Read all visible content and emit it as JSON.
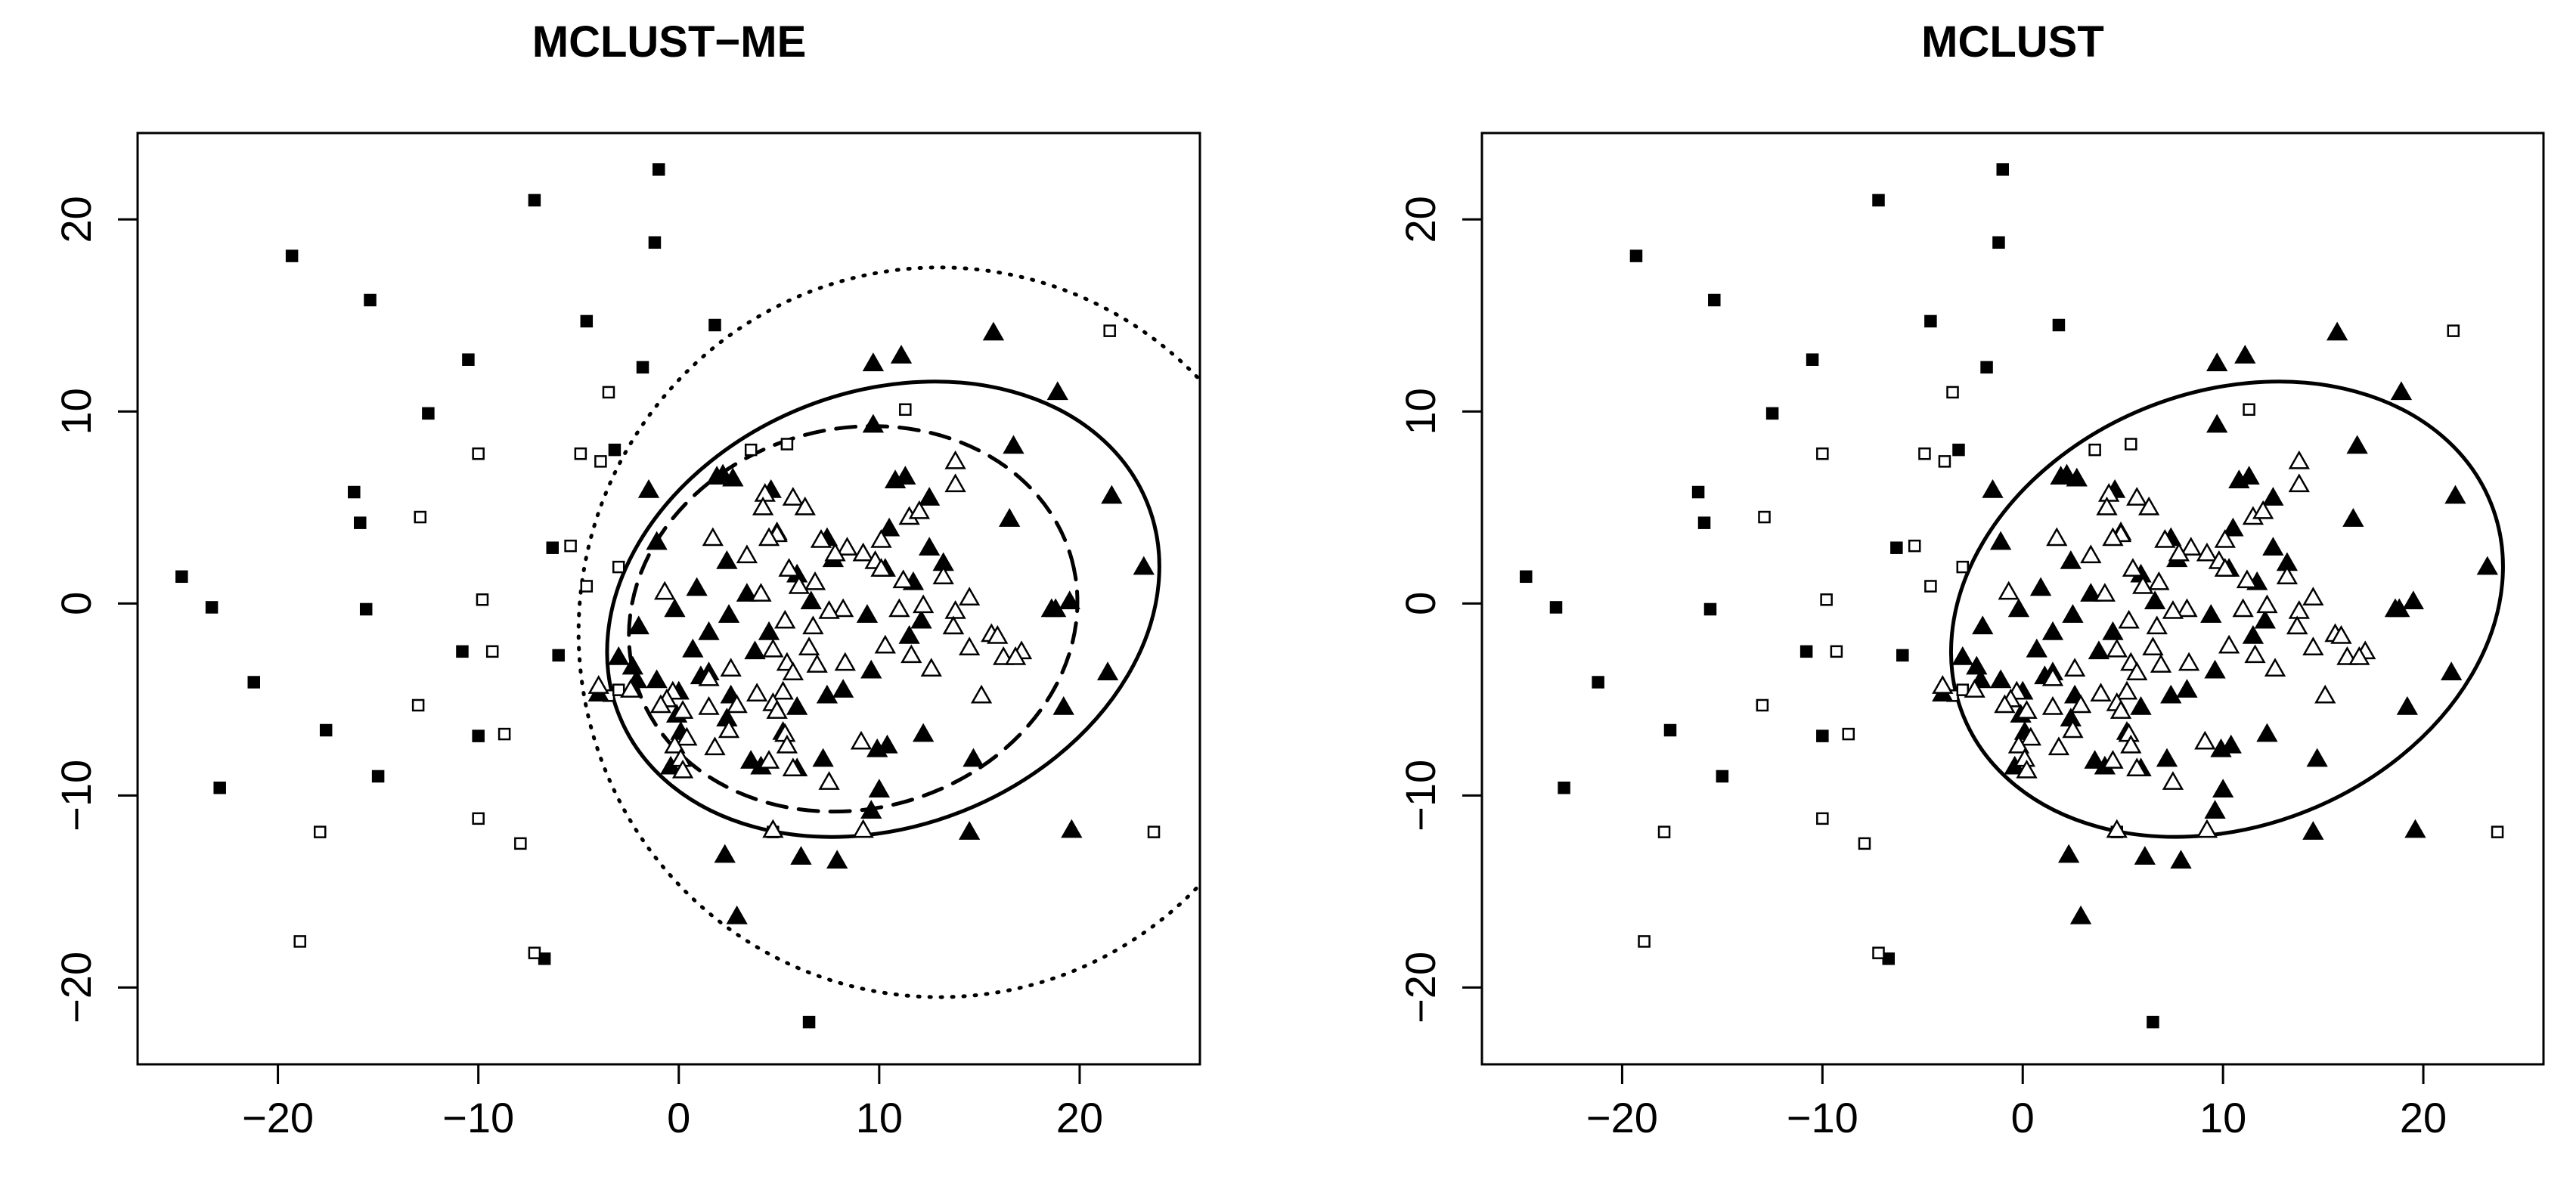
{
  "chart_data": [
    {
      "type": "scatter",
      "title": "MCLUST−ME",
      "xlabel": "",
      "ylabel": "",
      "xlim": [
        -27,
        26
      ],
      "ylim": [
        -24,
        24.5
      ],
      "x_ticks": [
        -20,
        -10,
        0,
        10,
        20
      ],
      "y_ticks": [
        -20,
        -10,
        0,
        10,
        20
      ],
      "x_tick_labels": [
        "−20",
        "−10",
        "0",
        "10",
        "20"
      ],
      "y_tick_labels": [
        "−20",
        "−10",
        "0",
        "10",
        "20"
      ],
      "grid": false,
      "ellipses": [
        {
          "style": "solid",
          "cx": 10.2,
          "cy": -0.3,
          "rx": 14.2,
          "ry": 11.3,
          "angle": 22
        },
        {
          "style": "dashed",
          "cx": 8.7,
          "cy": -0.8,
          "rx": 11.3,
          "ry": 9.9,
          "angle": 15
        },
        {
          "style": "dotted",
          "cx": 13.0,
          "cy": -1.5,
          "rx": 18.0,
          "ry": 19.0,
          "angle": 0
        }
      ]
    },
    {
      "type": "scatter",
      "title": "MCLUST",
      "xlabel": "",
      "ylabel": "",
      "xlim": [
        -27,
        26
      ],
      "ylim": [
        -24,
        24.5
      ],
      "x_ticks": [
        -20,
        -10,
        0,
        10,
        20
      ],
      "y_ticks": [
        -20,
        -10,
        0,
        10,
        20
      ],
      "x_tick_labels": [
        "−20",
        "−10",
        "0",
        "10",
        "20"
      ],
      "y_tick_labels": [
        "−20",
        "−10",
        "0",
        "10",
        "20"
      ],
      "grid": false,
      "ellipses": [
        {
          "style": "solid",
          "cx": 10.2,
          "cy": -0.3,
          "rx": 14.2,
          "ry": 11.3,
          "angle": 22
        }
      ]
    }
  ],
  "points": {
    "filled_squares": [
      [
        -1,
        22.6
      ],
      [
        -7.2,
        21
      ],
      [
        -1.2,
        18.8
      ],
      [
        -19.3,
        18.1
      ],
      [
        -15.4,
        15.8
      ],
      [
        -4.6,
        14.7
      ],
      [
        1.8,
        14.5
      ],
      [
        -10.5,
        12.7
      ],
      [
        -1.8,
        12.3
      ],
      [
        -12.5,
        9.9
      ],
      [
        -3.2,
        8
      ],
      [
        -16.2,
        5.8
      ],
      [
        -15.9,
        4.2
      ],
      [
        -6.3,
        2.9
      ],
      [
        -24.8,
        1.4
      ],
      [
        -23.3,
        -0.2
      ],
      [
        -15.6,
        -0.3
      ],
      [
        -10.8,
        -2.5
      ],
      [
        -6,
        -2.7
      ],
      [
        -21.2,
        -4.1
      ],
      [
        -10,
        -6.9
      ],
      [
        -17.6,
        -6.6
      ],
      [
        -15,
        -9
      ],
      [
        -22.9,
        -9.6
      ],
      [
        -6.7,
        -18.5
      ],
      [
        6.5,
        -21.8
      ]
    ],
    "open_squares": [
      [
        21.5,
        14.2
      ],
      [
        -3.5,
        11
      ],
      [
        11.3,
        10.1
      ],
      [
        3.6,
        8
      ],
      [
        5.4,
        8.3
      ],
      [
        -10,
        7.8
      ],
      [
        -4.9,
        7.8
      ],
      [
        -3.9,
        7.4
      ],
      [
        -12.9,
        4.5
      ],
      [
        -5.4,
        3
      ],
      [
        -3,
        1.9
      ],
      [
        -4.6,
        0.9
      ],
      [
        -9.8,
        0.2
      ],
      [
        -9.3,
        -2.5
      ],
      [
        -13,
        -5.3
      ],
      [
        -8.7,
        -6.8
      ],
      [
        -10,
        -11.2
      ],
      [
        -17.9,
        -11.9
      ],
      [
        4.7,
        -11.9
      ],
      [
        -7.9,
        -12.5
      ],
      [
        23.7,
        -11.9
      ],
      [
        -18.9,
        -17.6
      ],
      [
        -7.2,
        -18.2
      ],
      [
        -3.5,
        -4.8
      ],
      [
        -3,
        -4.5
      ]
    ],
    "filled_triangles": [
      [
        11.1,
        12.9
      ],
      [
        9.7,
        12.5
      ],
      [
        15.7,
        14.1
      ],
      [
        18.9,
        11
      ],
      [
        9.7,
        9.3
      ],
      [
        16.7,
        8.2
      ],
      [
        2.2,
        6.7
      ],
      [
        1.9,
        6.6
      ],
      [
        2.7,
        6.5
      ],
      [
        10.8,
        6.4
      ],
      [
        11.3,
        6.6
      ],
      [
        4.6,
        5.9
      ],
      [
        -1.5,
        5.9
      ],
      [
        12.5,
        5.5
      ],
      [
        21.6,
        5.6
      ],
      [
        7.4,
        3.4
      ],
      [
        10.5,
        3.9
      ],
      [
        -1.1,
        3.2
      ],
      [
        12.5,
        2.9
      ],
      [
        7.7,
        2.3
      ],
      [
        16.5,
        4.4
      ],
      [
        2.4,
        2.2
      ],
      [
        0.9,
        0.8
      ],
      [
        10.3,
        1.8
      ],
      [
        13.2,
        2.1
      ],
      [
        23.2,
        1.9
      ],
      [
        5.9,
        1.5
      ],
      [
        3.4,
        0.5
      ],
      [
        11.7,
        1.1
      ],
      [
        6.6,
        0.1
      ],
      [
        -0.2,
        -0.3
      ],
      [
        19.5,
        0.1
      ],
      [
        18.6,
        -0.3
      ],
      [
        18.8,
        -0.3
      ],
      [
        2.5,
        -0.6
      ],
      [
        9.4,
        -0.6
      ],
      [
        12.1,
        -0.9
      ],
      [
        13.7,
        -1.2
      ],
      [
        1.5,
        -1.5
      ],
      [
        4.5,
        -1.5
      ],
      [
        11.5,
        -1.7
      ],
      [
        -2,
        -1.2
      ],
      [
        0.7,
        -2.4
      ],
      [
        3.8,
        -2.5
      ],
      [
        -2.3,
        -3.3
      ],
      [
        1.5,
        -3.6
      ],
      [
        -3,
        -2.8
      ],
      [
        9.6,
        -3.5
      ],
      [
        -2.1,
        -4
      ],
      [
        1.1,
        -3.8
      ],
      [
        -1.1,
        -4
      ],
      [
        0,
        -4.6
      ],
      [
        21.4,
        -3.6
      ],
      [
        2.6,
        -4.8
      ],
      [
        8.2,
        -4.5
      ],
      [
        -4,
        -4.7
      ],
      [
        7.4,
        -4.8
      ],
      [
        5.9,
        -5.4
      ],
      [
        -0.1,
        -5.8
      ],
      [
        2.4,
        -6
      ],
      [
        5.2,
        -6.7
      ],
      [
        12.2,
        -6.8
      ],
      [
        0.1,
        -6.7
      ],
      [
        10.4,
        -7.4
      ],
      [
        7.2,
        -8.1
      ],
      [
        19.2,
        -5.4
      ],
      [
        9.9,
        -7.6
      ],
      [
        3.6,
        -8.2
      ],
      [
        -0.4,
        -8.5
      ],
      [
        14.7,
        -8.1
      ],
      [
        4.1,
        -8.5
      ],
      [
        5.9,
        -8.6
      ],
      [
        10,
        -9.7
      ],
      [
        9.6,
        -10.8
      ],
      [
        19.6,
        -11.8
      ],
      [
        14.5,
        -11.9
      ],
      [
        2.3,
        -13.1
      ],
      [
        6.1,
        -13.2
      ],
      [
        7.9,
        -13.4
      ],
      [
        2.9,
        -16.3
      ]
    ],
    "open_triangles": [
      [
        13.8,
        7.4
      ],
      [
        13.8,
        6.2
      ],
      [
        4.3,
        5.7
      ],
      [
        5.7,
        5.5
      ],
      [
        4.2,
        5
      ],
      [
        11.5,
        4.5
      ],
      [
        12,
        4.8
      ],
      [
        4.9,
        3.7
      ],
      [
        6.3,
        5
      ],
      [
        1.7,
        3.4
      ],
      [
        7.1,
        3.3
      ],
      [
        4.9,
        3.6
      ],
      [
        4.5,
        3.4
      ],
      [
        10.1,
        3.3
      ],
      [
        3.4,
        2.5
      ],
      [
        8.4,
        2.9
      ],
      [
        7.8,
        2.6
      ],
      [
        9.2,
        2.6
      ],
      [
        9.8,
        2.2
      ],
      [
        5.5,
        1.8
      ],
      [
        13.2,
        1.4
      ],
      [
        10.1,
        1.8
      ],
      [
        11.2,
        1.2
      ],
      [
        6.8,
        1.1
      ],
      [
        6,
        0.9
      ],
      [
        -0.7,
        0.6
      ],
      [
        4.1,
        0.5
      ],
      [
        14.5,
        0.3
      ],
      [
        12.2,
        -0.1
      ],
      [
        8.2,
        -0.3
      ],
      [
        7.5,
        -0.4
      ],
      [
        11,
        -0.3
      ],
      [
        13.8,
        -0.4
      ],
      [
        15.6,
        -1.6
      ],
      [
        5.3,
        -0.9
      ],
      [
        6.7,
        -1.2
      ],
      [
        13.7,
        -1.2
      ],
      [
        15.9,
        -1.7
      ],
      [
        4.7,
        -2.4
      ],
      [
        6.5,
        -2.3
      ],
      [
        10.3,
        -2.2
      ],
      [
        11.6,
        -2.7
      ],
      [
        17.1,
        -2.5
      ],
      [
        14.5,
        -2.3
      ],
      [
        16.2,
        -2.8
      ],
      [
        16.8,
        -2.8
      ],
      [
        2.6,
        -3.4
      ],
      [
        5.4,
        -3.1
      ],
      [
        6.9,
        -3.2
      ],
      [
        8.3,
        -3.1
      ],
      [
        12.6,
        -3.4
      ],
      [
        1.5,
        -3.9
      ],
      [
        5.7,
        -3.6
      ],
      [
        -0.3,
        -4.6
      ],
      [
        3.9,
        -4.7
      ],
      [
        5.2,
        -4.6
      ],
      [
        -2.4,
        -4.5
      ],
      [
        -4,
        -4.3
      ],
      [
        1.5,
        -5.4
      ],
      [
        -0.6,
        -5
      ],
      [
        2.9,
        -5.3
      ],
      [
        4.7,
        -5.2
      ],
      [
        4.9,
        -5.6
      ],
      [
        15.1,
        -4.8
      ],
      [
        -0.9,
        -5.3
      ],
      [
        0.2,
        -5.6
      ],
      [
        0.4,
        -7
      ],
      [
        2.5,
        -6.6
      ],
      [
        5.3,
        -6.8
      ],
      [
        1.8,
        -7.5
      ],
      [
        -0.2,
        -7.4
      ],
      [
        5.4,
        -7.4
      ],
      [
        9.1,
        -7.2
      ],
      [
        0.1,
        -8.1
      ],
      [
        5.7,
        -8.6
      ],
      [
        4.5,
        -8.2
      ],
      [
        0.2,
        -8.7
      ],
      [
        7.5,
        -9.3
      ],
      [
        4.7,
        -11.8
      ],
      [
        9.2,
        -11.8
      ]
    ]
  }
}
